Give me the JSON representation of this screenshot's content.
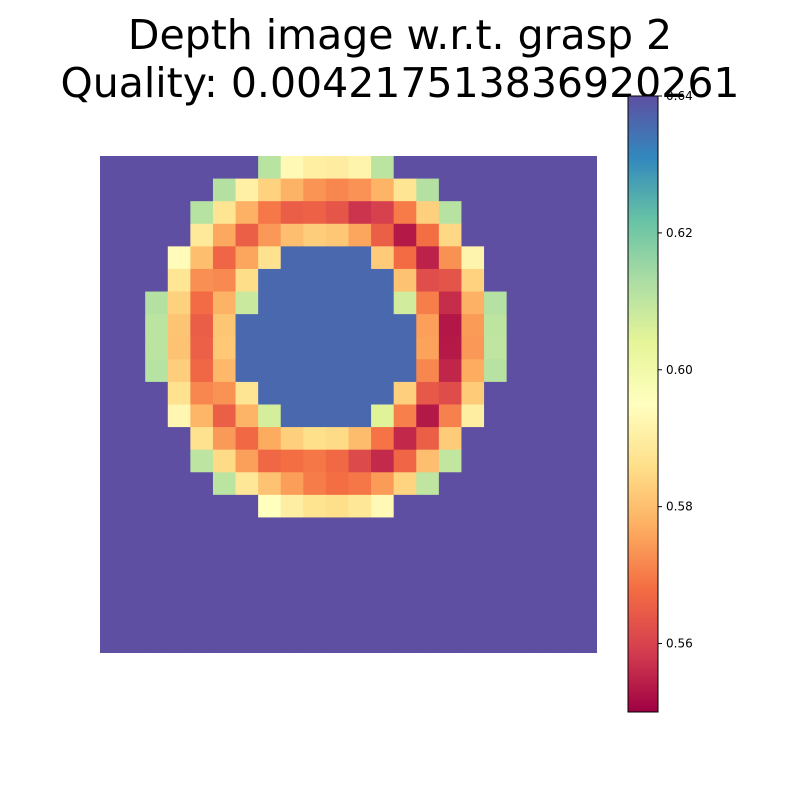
{
  "chart_data": {
    "type": "heatmap",
    "title": "Depth image w.r.t. grasp 2",
    "subtitle": "Quality: 0.004217513836920261",
    "colormap": "Spectral",
    "vmin": 0.55,
    "vmax": 0.64,
    "rows": 22,
    "cols": 22,
    "background_value": 0.64,
    "colorbar_ticks": [
      "0.56",
      "0.58",
      "0.60",
      "0.62",
      "0.64"
    ],
    "colorbar_tick_values": [
      0.56,
      0.58,
      0.6,
      0.62,
      0.64
    ],
    "ring_model": {
      "center_col": 9.5,
      "center_row": 7.6,
      "rx": 7.7,
      "ry": 8.2,
      "band_inner": 0.49,
      "band_outer": 1.0,
      "hole_value": 0.636,
      "edge_value": 0.6,
      "ridge_value": 0.553,
      "left_ring_value": 0.565,
      "right_ridge_offset": 0.25
    }
  }
}
